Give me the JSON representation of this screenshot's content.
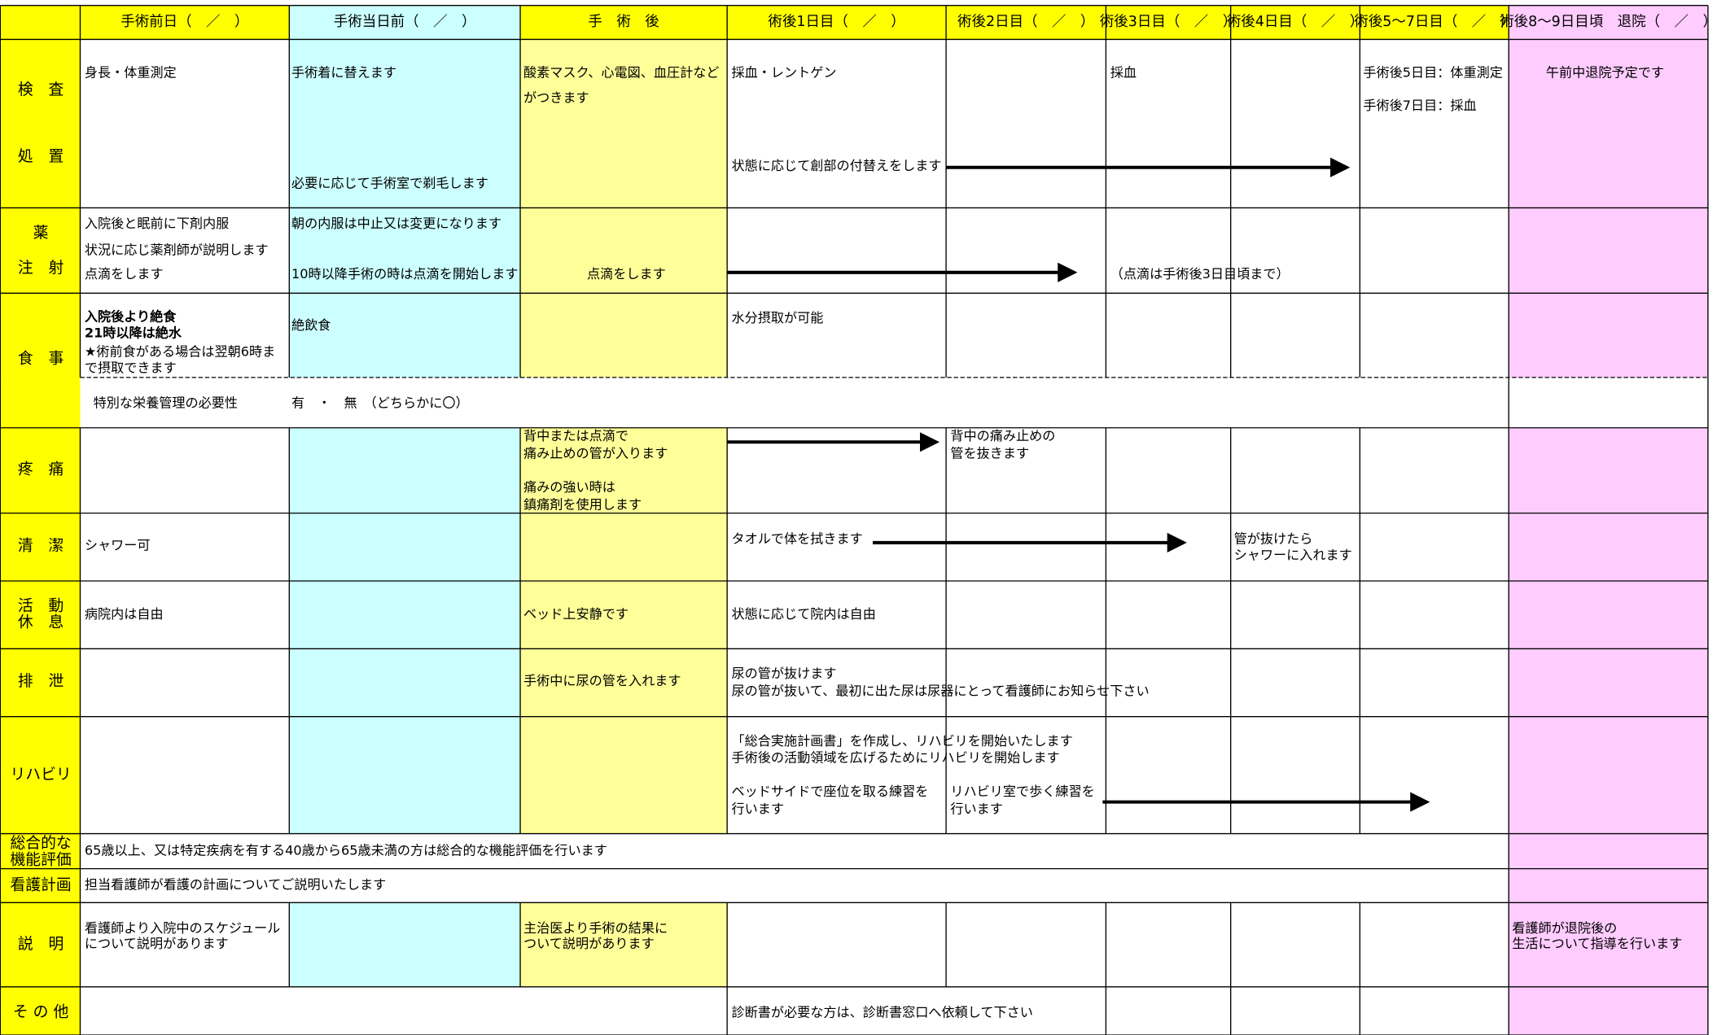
{
  "header": {
    "columns": [
      "手術前日（　／　）",
      "手術当日前（　／　）",
      "手　術　後",
      "術後1日目（　／　）",
      "術後2日目（　／　）",
      "術後3日目（　／　）",
      "術後4日目（　／　）",
      "術後5～7日目（　／　）",
      "術後8～9日目頃　退院（　／　）"
    ]
  },
  "row_labels": [
    [
      "検　査",
      "処　置"
    ],
    [
      "薬",
      "注　射"
    ],
    [
      "食　事"
    ],
    [
      "疼　痛"
    ],
    [
      "清　潔"
    ],
    [
      "活　動",
      "休　息"
    ],
    [
      "排　泄"
    ],
    [
      "リハビリ"
    ],
    [
      "総合的な",
      "機能評価"
    ],
    [
      "看護計画"
    ],
    [
      "説　明"
    ],
    [
      "そ の 他"
    ]
  ],
  "cells": [
    "身長・体重測定",
    "手術着に替えます",
    "必要に応じて手術室で剃毛します",
    "酸素マスク、心電図、血圧計など",
    "がつきます",
    "採血・レントゲン",
    "状態に応じて創部の付替えをします",
    "採血",
    "手術後5日目：体重測定",
    "手術後7日目：採血",
    "午前中退院予定です",
    "入院後と眠前に下剤内服",
    "状況に応じ薬剤師が説明します",
    "点滴をします",
    "朝の内服は中止又は変更になります",
    "10時以降手術の時は点滴を開始します",
    "点滴をします",
    "（点滴は手術後3日目頃まで）",
    "入院後より絶食",
    "21時以降は絶水",
    "★術前食がある場合は翌朝6時ま",
    "で摂取できます",
    "絶飲食",
    "水分摂取が可能",
    "特別な栄養管理の必要性",
    "有　・　無　（どちらかに〇）",
    "背中または点滴で",
    "痛み止めの管が入ります",
    "痛みの強い時は",
    "鎮痛剤を使用します",
    "背中の痛み止めの",
    "管を抜きます",
    "シャワー可",
    "タオルで体を拭きます",
    "管が抜けたら",
    "シャワーに入れます",
    "病院内は自由",
    "ベッド上安静です",
    "状態に応じて院内は自由",
    "手術中に尿の管を入れます",
    "尿の管が抜けます",
    "尿の管が抜いて、最初に出た尿は尿器にとって看護師にお知らせ下さい",
    "「総合実施計画書」を作成し、リハビリを開始いたします",
    "手術後の活動領域を広げるためにリハビリを開始します",
    "ベッドサイドで座位を取る練習を",
    "行います",
    "リハビリ室で歩く練習を",
    "行います",
    "65歳以上、又は特定疾病を有する40歳から65歳未満の方は総合的な機能評価を行います",
    "担当看護師が看護の計画についてご説明いたします",
    "看護師より入院中のスケジュール",
    "について説明があります",
    "主治医より手術の結果に",
    "ついて説明があります",
    "看護師が退院後の",
    "生活について指導を行います",
    "診断書が必要な方は、診断書窓口へ依頼して下さい"
  ]
}
